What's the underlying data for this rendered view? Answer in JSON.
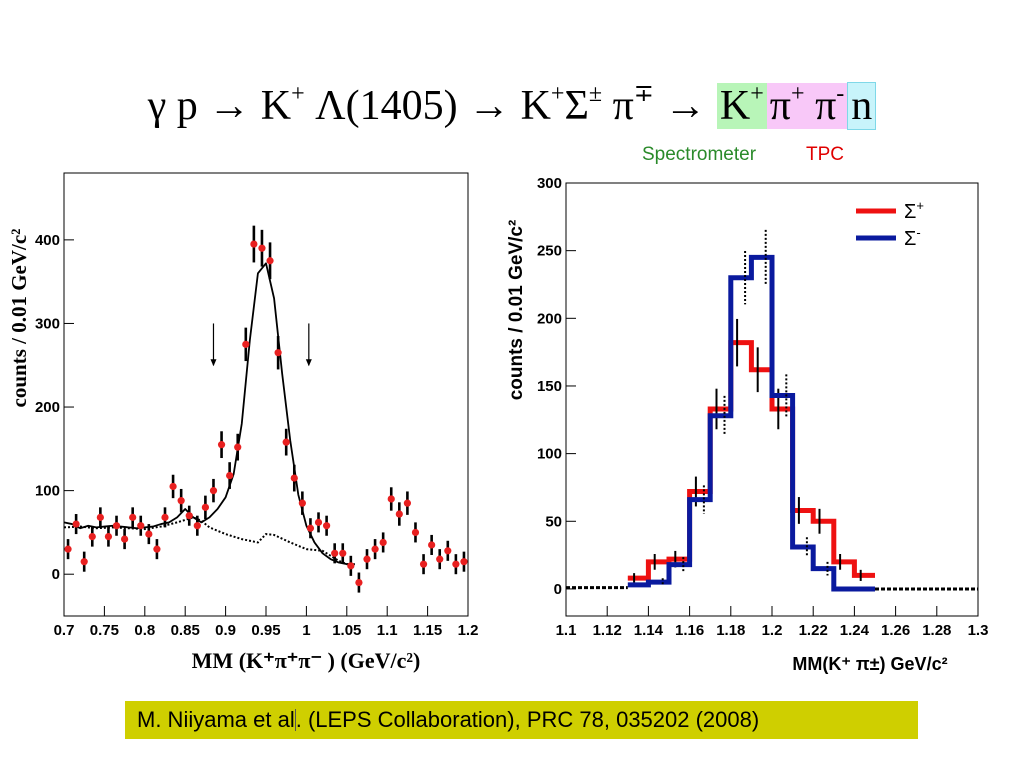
{
  "title": {
    "part1": "γ p → K",
    "sup1": "+",
    "part2": " Λ(1405) → K",
    "sup2": "+",
    "part3": "Σ",
    "sup3": "±",
    "part4": " π",
    "sup4": "∓",
    "part5": " → ",
    "box_spec_text": "K",
    "box_spec_sup": "+",
    "box_tpc_text1": "π",
    "box_tpc_sup1": "+",
    "box_tpc_text2": " π",
    "box_tpc_sup2": "-",
    "box_n_text": "n"
  },
  "detector_labels": {
    "spectrometer": "Spectrometer",
    "tpc": "TPC"
  },
  "colors": {
    "spectrometer_box": "#b8f5b8",
    "tpc_box": "#f8c8f8",
    "neutron_box": "#c8f4fb",
    "spectrometer_text": "#2a8a2a",
    "tpc_text": "#e00000",
    "citation_bg": "#cfcf00"
  },
  "citation": {
    "part1": "M. Niiyama et al",
    "part2": ". (LEPS Collaboration), PRC 78, 035202 (2008)"
  },
  "chart_data": [
    {
      "type": "scatter",
      "xlabel": "MM (K⁺π⁺π⁻ )    (GeV/c²)",
      "ylabel": "counts / 0.01 GeV/c²",
      "xlim": [
        0.7,
        1.2
      ],
      "ylim": [
        -50,
        480
      ],
      "xticks": [
        0.7,
        0.75,
        0.8,
        0.85,
        0.9,
        0.95,
        1,
        1.05,
        1.1,
        1.15,
        1.2
      ],
      "xtick_labels": [
        "0.7",
        "0.75",
        "0.8",
        "0.85",
        "0.9",
        "0.95",
        "1",
        "1.05",
        "1.1",
        "1.15",
        "1.2"
      ],
      "yticks": [
        0,
        100,
        200,
        300,
        400
      ],
      "ytick_labels": [
        "0",
        "100",
        "200",
        "300",
        "400"
      ],
      "marker_color": "#e82020",
      "points": [
        {
          "x": 0.705,
          "y": 30,
          "err": 12
        },
        {
          "x": 0.715,
          "y": 60,
          "err": 12
        },
        {
          "x": 0.725,
          "y": 15,
          "err": 12
        },
        {
          "x": 0.735,
          "y": 45,
          "err": 12
        },
        {
          "x": 0.745,
          "y": 68,
          "err": 12
        },
        {
          "x": 0.755,
          "y": 45,
          "err": 12
        },
        {
          "x": 0.765,
          "y": 58,
          "err": 12
        },
        {
          "x": 0.775,
          "y": 42,
          "err": 12
        },
        {
          "x": 0.785,
          "y": 68,
          "err": 12
        },
        {
          "x": 0.795,
          "y": 58,
          "err": 12
        },
        {
          "x": 0.805,
          "y": 48,
          "err": 12
        },
        {
          "x": 0.815,
          "y": 30,
          "err": 12
        },
        {
          "x": 0.825,
          "y": 68,
          "err": 12
        },
        {
          "x": 0.835,
          "y": 105,
          "err": 14
        },
        {
          "x": 0.845,
          "y": 88,
          "err": 14
        },
        {
          "x": 0.855,
          "y": 70,
          "err": 12
        },
        {
          "x": 0.865,
          "y": 58,
          "err": 12
        },
        {
          "x": 0.875,
          "y": 80,
          "err": 14
        },
        {
          "x": 0.885,
          "y": 100,
          "err": 14
        },
        {
          "x": 0.895,
          "y": 155,
          "err": 16
        },
        {
          "x": 0.905,
          "y": 118,
          "err": 16
        },
        {
          "x": 0.915,
          "y": 152,
          "err": 16
        },
        {
          "x": 0.925,
          "y": 275,
          "err": 20
        },
        {
          "x": 0.935,
          "y": 395,
          "err": 22
        },
        {
          "x": 0.945,
          "y": 390,
          "err": 22
        },
        {
          "x": 0.955,
          "y": 375,
          "err": 22
        },
        {
          "x": 0.965,
          "y": 265,
          "err": 20
        },
        {
          "x": 0.975,
          "y": 158,
          "err": 16
        },
        {
          "x": 0.985,
          "y": 115,
          "err": 16
        },
        {
          "x": 0.995,
          "y": 85,
          "err": 14
        },
        {
          "x": 1.005,
          "y": 55,
          "err": 12
        },
        {
          "x": 1.015,
          "y": 62,
          "err": 12
        },
        {
          "x": 1.025,
          "y": 58,
          "err": 12
        },
        {
          "x": 1.035,
          "y": 25,
          "err": 12
        },
        {
          "x": 1.045,
          "y": 25,
          "err": 12
        },
        {
          "x": 1.055,
          "y": 10,
          "err": 12
        },
        {
          "x": 1.065,
          "y": -10,
          "err": 12
        },
        {
          "x": 1.075,
          "y": 18,
          "err": 12
        },
        {
          "x": 1.085,
          "y": 30,
          "err": 12
        },
        {
          "x": 1.095,
          "y": 38,
          "err": 12
        },
        {
          "x": 1.105,
          "y": 90,
          "err": 14
        },
        {
          "x": 1.115,
          "y": 72,
          "err": 14
        },
        {
          "x": 1.125,
          "y": 85,
          "err": 14
        },
        {
          "x": 1.135,
          "y": 50,
          "err": 12
        },
        {
          "x": 1.145,
          "y": 12,
          "err": 12
        },
        {
          "x": 1.155,
          "y": 35,
          "err": 12
        },
        {
          "x": 1.165,
          "y": 18,
          "err": 12
        },
        {
          "x": 1.175,
          "y": 28,
          "err": 12
        },
        {
          "x": 1.185,
          "y": 12,
          "err": 12
        },
        {
          "x": 1.195,
          "y": 15,
          "err": 12
        }
      ],
      "fit_curve": {
        "x": [
          0.7,
          0.71,
          0.72,
          0.73,
          0.74,
          0.75,
          0.76,
          0.77,
          0.78,
          0.79,
          0.8,
          0.81,
          0.82,
          0.83,
          0.84,
          0.85,
          0.86,
          0.87,
          0.88,
          0.89,
          0.9,
          0.91,
          0.92,
          0.93,
          0.94,
          0.95,
          0.96,
          0.97,
          0.98,
          0.99,
          1.0,
          1.01,
          1.02,
          1.03,
          1.04,
          1.05,
          1.06
        ],
        "y": [
          62,
          60,
          55,
          58,
          56,
          57,
          58,
          57,
          56,
          55,
          56,
          57,
          60,
          62,
          68,
          78,
          68,
          62,
          68,
          78,
          92,
          120,
          180,
          280,
          360,
          372,
          330,
          240,
          160,
          95,
          58,
          38,
          25,
          18,
          14,
          12,
          12
        ]
      },
      "background_curve": {
        "x": [
          0.7,
          0.72,
          0.74,
          0.76,
          0.78,
          0.8,
          0.82,
          0.84,
          0.86,
          0.87,
          0.88,
          0.9,
          0.92,
          0.94,
          0.95,
          0.96,
          0.98,
          1.0,
          1.02,
          1.03,
          1.04,
          1.05,
          1.06
        ],
        "y": [
          56,
          57,
          55,
          56,
          55,
          54,
          57,
          62,
          68,
          64,
          56,
          48,
          42,
          38,
          48,
          47,
          38,
          30,
          28,
          22,
          16,
          12,
          12
        ]
      },
      "arrows": [
        {
          "x": 0.885,
          "y_top": 300,
          "y_bottom": 250
        },
        {
          "x": 1.003,
          "y_top": 300,
          "y_bottom": 250
        }
      ]
    },
    {
      "type": "line",
      "step": true,
      "xlabel": "MM(K⁺ π±)  GeV/c²",
      "ylabel": "counts / 0.01 GeV/c²",
      "xlim": [
        1.1,
        1.3
      ],
      "ylim": [
        -20,
        300
      ],
      "xticks": [
        1.1,
        1.12,
        1.14,
        1.16,
        1.18,
        1.2,
        1.22,
        1.24,
        1.26,
        1.28,
        1.3
      ],
      "xtick_labels": [
        "1.1",
        "1.12",
        "1.14",
        "1.16",
        "1.18",
        "1.2",
        "1.22",
        "1.24",
        "1.26",
        "1.28",
        "1.3"
      ],
      "yticks": [
        0,
        50,
        100,
        150,
        200,
        250,
        300
      ],
      "ytick_labels": [
        "0",
        "50",
        "100",
        "150",
        "200",
        "250",
        "300"
      ],
      "legend_position": "top-right",
      "bin_edges": [
        1.13,
        1.14,
        1.15,
        1.16,
        1.17,
        1.18,
        1.19,
        1.2,
        1.21,
        1.22,
        1.23,
        1.24,
        1.25
      ],
      "series": [
        {
          "name": "Σ",
          "name_sup": "+",
          "color": "#ee1111",
          "values": [
            8,
            20,
            22,
            72,
            133,
            182,
            162,
            133,
            58,
            50,
            20,
            10
          ]
        },
        {
          "name": "Σ",
          "name_sup": "-",
          "color": "#0a1a9e",
          "values": [
            3,
            5,
            18,
            66,
            128,
            230,
            245,
            143,
            31,
            15,
            0,
            0
          ]
        }
      ],
      "baseline_noise": [
        {
          "x1": 1.1,
          "x2": 1.13,
          "y": 1
        },
        {
          "x1": 1.25,
          "x2": 1.3,
          "y": 0
        }
      ]
    }
  ]
}
